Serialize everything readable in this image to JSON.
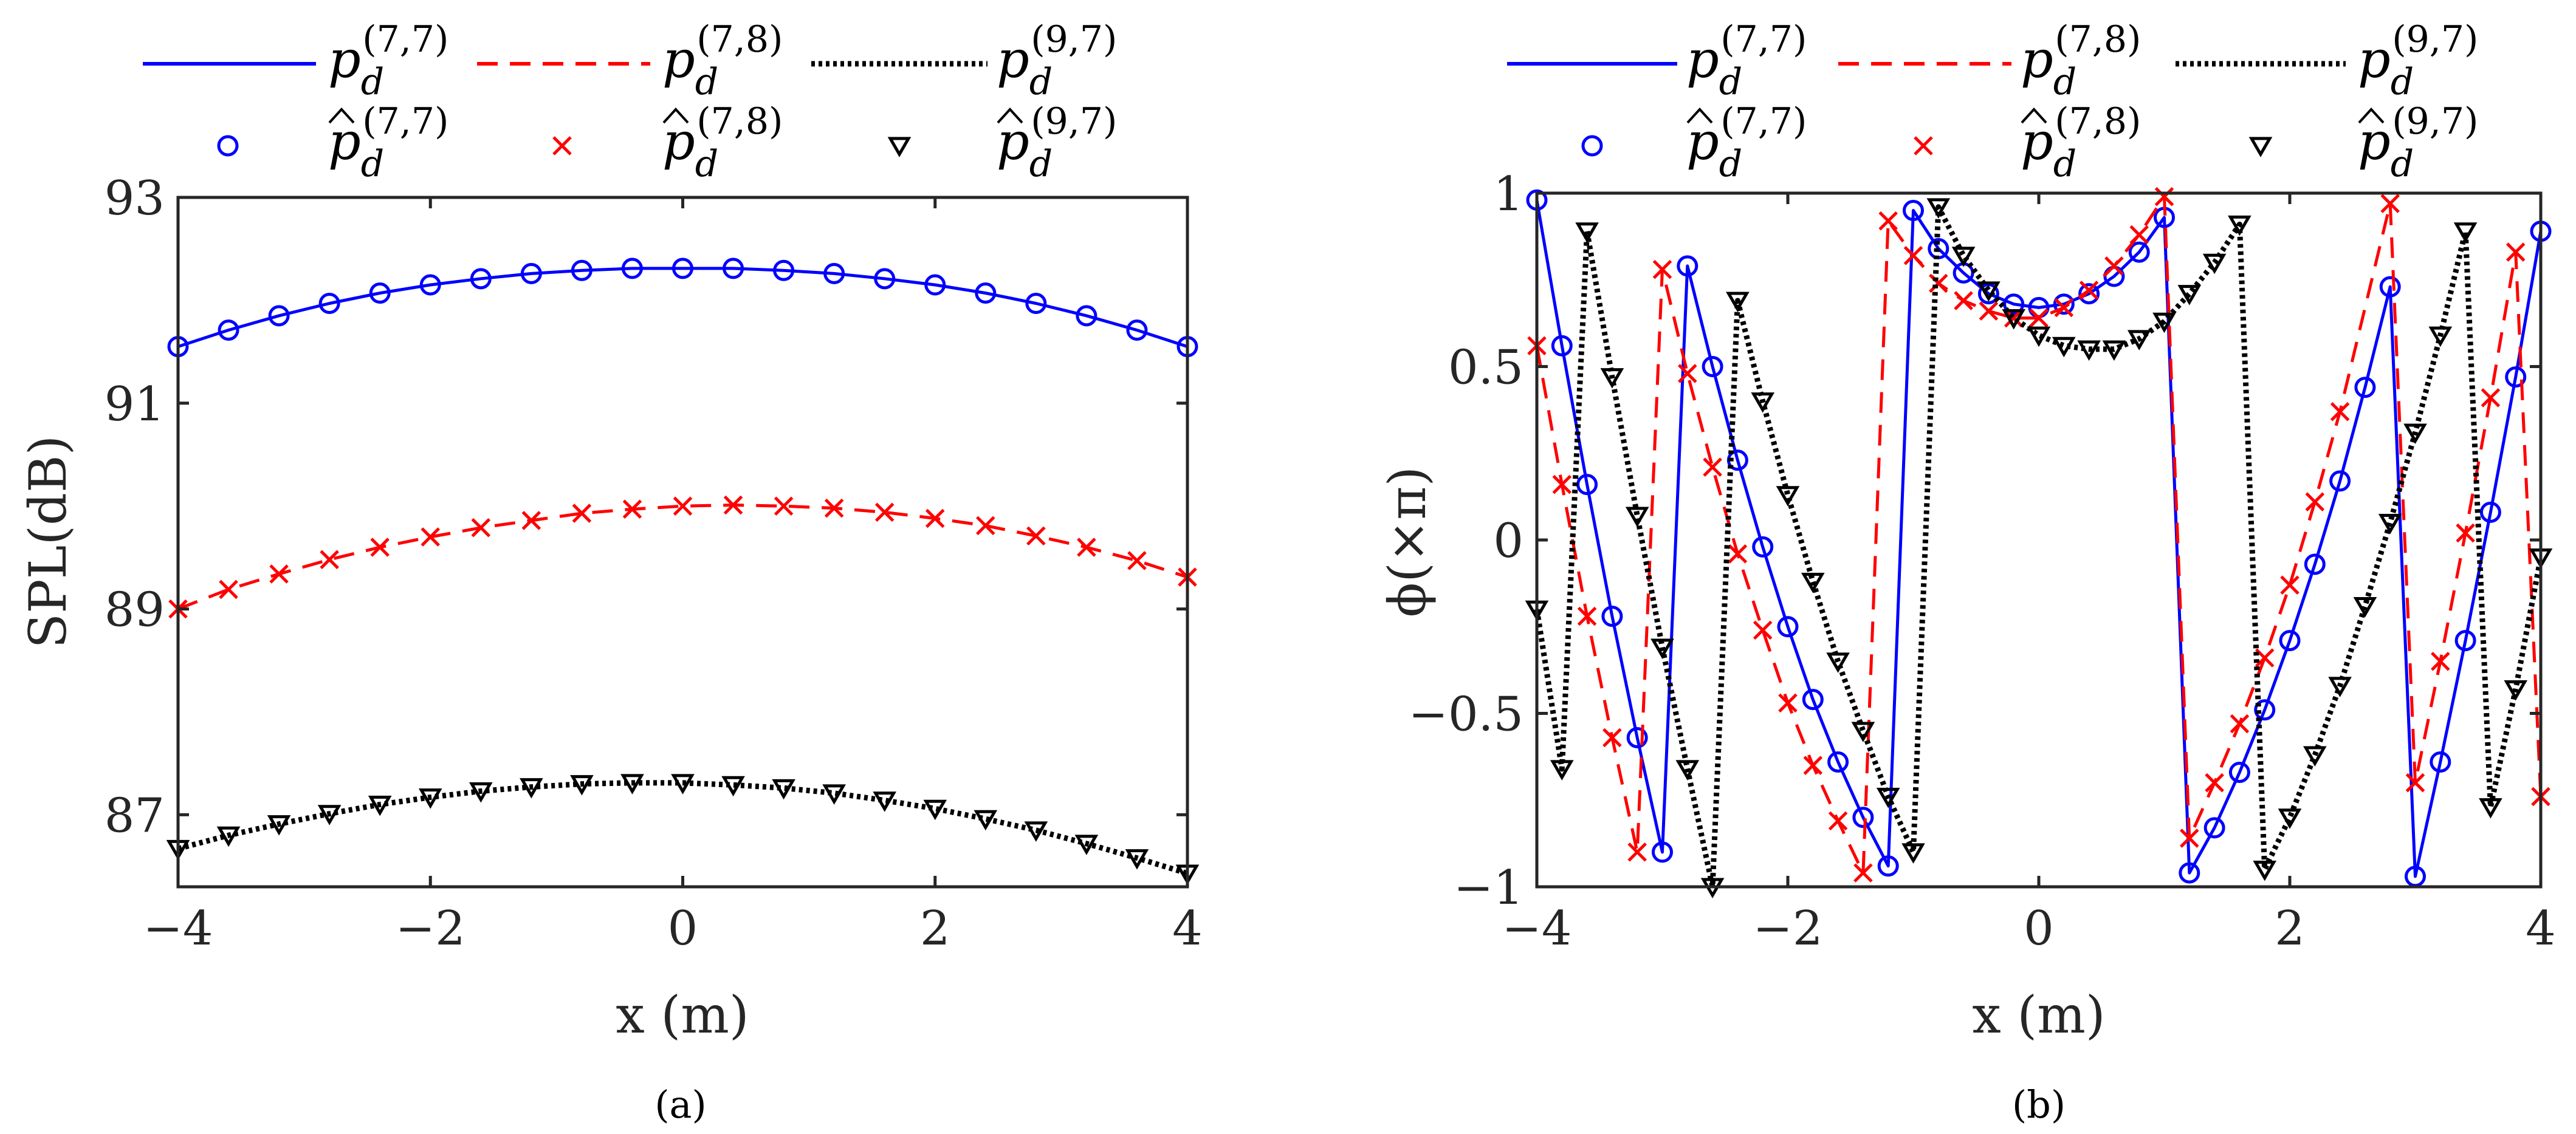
{
  "figure": {
    "panel_labels": [
      "(a)",
      "(b)"
    ]
  },
  "legend": {
    "entries": [
      {
        "label": "p_d^(7,7)",
        "base": "p",
        "sub": "d",
        "sup": "(7,7)",
        "hat": false
      },
      {
        "label": "p_d^(7,8)",
        "base": "p",
        "sub": "d",
        "sup": "(7,8)",
        "hat": false
      },
      {
        "label": "p_d^(9,7)",
        "base": "p",
        "sub": "d",
        "sup": "(9,7)",
        "hat": false
      },
      {
        "label": "p̂_d^(7,7)",
        "base": "p",
        "sub": "d",
        "sup": "(7,7)",
        "hat": true
      },
      {
        "label": "p̂_d^(7,8)",
        "base": "p",
        "sub": "d",
        "sup": "(7,8)",
        "hat": true
      },
      {
        "label": "p̂_d^(9,7)",
        "base": "p",
        "sub": "d",
        "sup": "(9,7)",
        "hat": true
      }
    ]
  },
  "colors": {
    "blue": "#0000ff",
    "red": "#ff0000",
    "black": "#000000",
    "axis": "#262626"
  },
  "chart_data": [
    {
      "type": "line",
      "panel": "(a)",
      "xlabel": "x (m)",
      "ylabel": "SPL(dB)",
      "xlim": [
        -4,
        4
      ],
      "ylim": [
        86.3,
        93
      ],
      "xticks": [
        -4,
        -2,
        0,
        2,
        4
      ],
      "xtick_labels": [
        "−4",
        "−2",
        "0",
        "2",
        "4"
      ],
      "yticks": [
        87,
        89,
        91,
        93
      ],
      "ytick_labels": [
        "87",
        "89",
        "91",
        "93"
      ],
      "grid": false,
      "legend_location": "top-outside",
      "series": [
        {
          "name": "p_d^(7,7)",
          "color": "#0000ff",
          "line": "solid",
          "marker": "none",
          "x": [
            -4,
            -3.6,
            -3.2,
            -2.8,
            -2.4,
            -2,
            -1.6,
            -1.2,
            -0.8,
            -0.4,
            0,
            0.4,
            0.8,
            1.2,
            1.6,
            2,
            2.4,
            2.8,
            3.2,
            3.6,
            4
          ],
          "y": [
            91.55,
            91.71,
            91.85,
            91.97,
            92.07,
            92.15,
            92.21,
            92.26,
            92.29,
            92.31,
            92.31,
            92.31,
            92.29,
            92.26,
            92.21,
            92.15,
            92.07,
            91.97,
            91.85,
            91.71,
            91.55
          ]
        },
        {
          "name": "p̂_d^(7,7)",
          "color": "#0000ff",
          "line": "none",
          "marker": "circle",
          "x": [
            -4,
            -3.6,
            -3.2,
            -2.8,
            -2.4,
            -2,
            -1.6,
            -1.2,
            -0.8,
            -0.4,
            0,
            0.4,
            0.8,
            1.2,
            1.6,
            2,
            2.4,
            2.8,
            3.2,
            3.6,
            4
          ],
          "y": [
            91.55,
            91.71,
            91.85,
            91.97,
            92.07,
            92.15,
            92.21,
            92.26,
            92.29,
            92.31,
            92.31,
            92.31,
            92.29,
            92.26,
            92.21,
            92.15,
            92.07,
            91.97,
            91.85,
            91.71,
            91.55
          ]
        },
        {
          "name": "p_d^(7,8)",
          "color": "#ff0000",
          "line": "dashed",
          "marker": "none",
          "x": [
            -4,
            -3.6,
            -3.2,
            -2.8,
            -2.4,
            -2,
            -1.6,
            -1.2,
            -0.8,
            -0.4,
            0,
            0.4,
            0.8,
            1.2,
            1.6,
            2,
            2.4,
            2.8,
            3.2,
            3.6,
            4
          ],
          "y": [
            89.0,
            89.19,
            89.34,
            89.48,
            89.6,
            89.7,
            89.79,
            89.86,
            89.93,
            89.97,
            90.0,
            90.01,
            90.0,
            89.98,
            89.94,
            89.88,
            89.81,
            89.71,
            89.6,
            89.47,
            89.31
          ]
        },
        {
          "name": "p̂_d^(7,8)",
          "color": "#ff0000",
          "line": "none",
          "marker": "x",
          "x": [
            -4,
            -3.6,
            -3.2,
            -2.8,
            -2.4,
            -2,
            -1.6,
            -1.2,
            -0.8,
            -0.4,
            0,
            0.4,
            0.8,
            1.2,
            1.6,
            2,
            2.4,
            2.8,
            3.2,
            3.6,
            4
          ],
          "y": [
            89.0,
            89.19,
            89.34,
            89.48,
            89.6,
            89.7,
            89.79,
            89.86,
            89.93,
            89.97,
            90.0,
            90.01,
            90.0,
            89.98,
            89.94,
            89.88,
            89.81,
            89.71,
            89.6,
            89.47,
            89.31
          ]
        },
        {
          "name": "p_d^(9,7)",
          "color": "#000000",
          "line": "dotted",
          "marker": "none",
          "x": [
            -4,
            -3.6,
            -3.2,
            -2.8,
            -2.4,
            -2,
            -1.6,
            -1.2,
            -0.8,
            -0.4,
            0,
            0.4,
            0.8,
            1.2,
            1.6,
            2,
            2.4,
            2.8,
            3.2,
            3.6,
            4
          ],
          "y": [
            86.67,
            86.8,
            86.91,
            87.01,
            87.1,
            87.17,
            87.23,
            87.27,
            87.3,
            87.31,
            87.31,
            87.29,
            87.26,
            87.21,
            87.14,
            87.06,
            86.96,
            86.85,
            86.72,
            86.58,
            86.43
          ]
        },
        {
          "name": "p̂_d^(9,7)",
          "color": "#000000",
          "line": "none",
          "marker": "triangle-down",
          "x": [
            -4,
            -3.6,
            -3.2,
            -2.8,
            -2.4,
            -2,
            -1.6,
            -1.2,
            -0.8,
            -0.4,
            0,
            0.4,
            0.8,
            1.2,
            1.6,
            2,
            2.4,
            2.8,
            3.2,
            3.6,
            4
          ],
          "y": [
            86.67,
            86.8,
            86.91,
            87.01,
            87.1,
            87.17,
            87.23,
            87.27,
            87.3,
            87.31,
            87.31,
            87.29,
            87.26,
            87.21,
            87.14,
            87.06,
            86.96,
            86.85,
            86.72,
            86.58,
            86.43
          ]
        }
      ]
    },
    {
      "type": "line",
      "panel": "(b)",
      "xlabel": "x (m)",
      "ylabel": "ϕ(×π)",
      "xlim": [
        -4,
        4
      ],
      "ylim": [
        -1,
        1
      ],
      "xticks": [
        -4,
        -2,
        0,
        2,
        4
      ],
      "xtick_labels": [
        "−4",
        "−2",
        "0",
        "2",
        "4"
      ],
      "yticks": [
        -1,
        -0.5,
        0,
        0.5,
        1
      ],
      "ytick_labels": [
        "−1",
        "−0.5",
        "0",
        "0.5",
        "1"
      ],
      "grid": false,
      "legend_location": "top-outside",
      "series": [
        {
          "name": "p_d^(7,7)",
          "color": "#0000ff",
          "line": "solid",
          "marker": "circle",
          "x": [
            -4,
            -3.8,
            -3.6,
            -3.4,
            -3.2,
            -3.0,
            -2.8,
            -2.6,
            -2.4,
            -2.2,
            -2.0,
            -1.8,
            -1.6,
            -1.4,
            -1.2,
            -1.0,
            -0.8,
            -0.6,
            -0.4,
            -0.2,
            0,
            0.2,
            0.4,
            0.6,
            0.8,
            1.0,
            1.2,
            1.4,
            1.6,
            1.8,
            2.0,
            2.2,
            2.4,
            2.6,
            2.8,
            3.0,
            3.2,
            3.4,
            3.6,
            3.8,
            4.0
          ],
          "y": [
            0.98,
            0.56,
            0.16,
            -0.22,
            -0.57,
            -0.9,
            0.79,
            0.5,
            0.23,
            -0.02,
            -0.25,
            -0.46,
            -0.64,
            -0.8,
            -0.94,
            0.95,
            0.84,
            0.77,
            0.71,
            0.68,
            0.67,
            0.68,
            0.71,
            0.76,
            0.83,
            0.93,
            -0.96,
            -0.83,
            -0.67,
            -0.49,
            -0.29,
            -0.07,
            0.17,
            0.44,
            0.73,
            -0.97,
            -0.64,
            -0.29,
            0.08,
            0.47,
            0.89
          ]
        },
        {
          "name": "p_d^(7,8)",
          "color": "#ff0000",
          "line": "dashed",
          "marker": "x",
          "x": [
            -4,
            -3.8,
            -3.6,
            -3.4,
            -3.2,
            -3.0,
            -2.8,
            -2.6,
            -2.4,
            -2.2,
            -2.0,
            -1.8,
            -1.6,
            -1.4,
            -1.2,
            -1.0,
            -0.8,
            -0.6,
            -0.4,
            -0.2,
            0,
            0.2,
            0.4,
            0.6,
            0.8,
            1.0,
            1.2,
            1.4,
            1.6,
            1.8,
            2.0,
            2.2,
            2.4,
            2.8,
            3.0,
            3.2,
            3.4,
            3.6,
            3.8,
            4.0
          ],
          "y": [
            0.56,
            0.16,
            -0.22,
            -0.57,
            -0.9,
            0.78,
            0.48,
            0.21,
            -0.04,
            -0.26,
            -0.47,
            -0.65,
            -0.81,
            -0.96,
            0.92,
            0.82,
            0.74,
            0.69,
            0.66,
            0.64,
            0.64,
            0.67,
            0.72,
            0.79,
            0.88,
            0.99,
            -0.86,
            -0.7,
            -0.53,
            -0.34,
            -0.13,
            0.11,
            0.37,
            0.97,
            -0.7,
            -0.35,
            0.02,
            0.41,
            0.83,
            -0.74
          ]
        },
        {
          "name": "p_d^(9,7)",
          "color": "#000000",
          "line": "dotted",
          "marker": "triangle-down",
          "x": [
            -4,
            -3.8,
            -3.6,
            -3.4,
            -3.2,
            -3.0,
            -2.8,
            -2.6,
            -2.4,
            -2.2,
            -2.0,
            -1.8,
            -1.6,
            -1.4,
            -1.2,
            -1.0,
            -0.8,
            -0.6,
            -0.4,
            -0.2,
            0,
            0.2,
            0.4,
            0.6,
            0.8,
            1.0,
            1.2,
            1.4,
            1.6,
            1.8,
            2.0,
            2.2,
            2.4,
            2.6,
            2.8,
            3.0,
            3.2,
            3.4,
            3.6,
            3.8,
            4.0
          ],
          "y": [
            -0.2,
            -0.66,
            0.89,
            0.47,
            0.07,
            -0.31,
            -0.66,
            -1.0,
            0.69,
            0.4,
            0.13,
            -0.12,
            -0.35,
            -0.55,
            -0.74,
            -0.9,
            0.96,
            0.82,
            0.72,
            0.64,
            0.59,
            0.56,
            0.55,
            0.55,
            0.58,
            0.63,
            0.71,
            0.8,
            0.91,
            -0.95,
            -0.8,
            -0.62,
            -0.42,
            -0.19,
            0.05,
            0.31,
            0.59,
            0.89,
            -0.77,
            -0.43,
            -0.05
          ]
        }
      ]
    }
  ]
}
